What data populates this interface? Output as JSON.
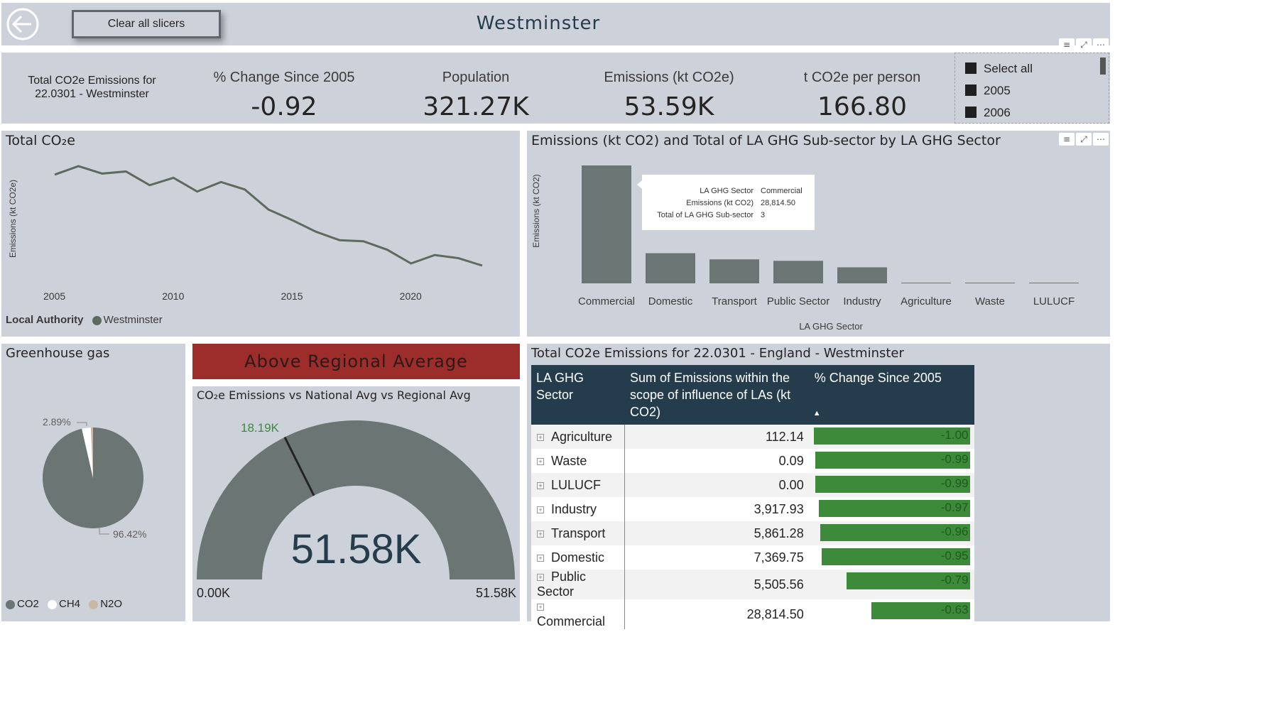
{
  "header": {
    "title": "Westminster",
    "clear_button": "Clear all slicers"
  },
  "kpis": {
    "caption": "Total CO2e Emissions for 22.0301 - Westminster",
    "items": [
      {
        "label": "% Change Since 2005",
        "value": "-0.92"
      },
      {
        "label": "Population",
        "value": "321.27K"
      },
      {
        "label": "Emissions (kt CO2e)",
        "value": "53.59K"
      },
      {
        "label": "t CO2e per person",
        "value": "166.80"
      }
    ]
  },
  "year_slicer": {
    "options": [
      "Select all",
      "2005",
      "2006"
    ]
  },
  "line_panel": {
    "title": "Total CO₂e",
    "legend_title": "Local Authority",
    "legend_item": "Westminster"
  },
  "bar_panel": {
    "title": "Emissions (kt CO2) and Total of LA GHG Sub-sector by LA GHG Sector",
    "tooltip": {
      "rows": [
        {
          "label": "LA GHG Sector",
          "value": "Commercial"
        },
        {
          "label": "Emissions (kt CO2)",
          "value": "28,814.50"
        },
        {
          "label": "Total of LA GHG Sub-sector",
          "value": "3"
        }
      ]
    }
  },
  "pie_panel": {
    "title": "Greenhouse gas",
    "label_ch4": "2.89%",
    "label_co2": "96.42%",
    "legend": [
      "CO2",
      "CH4",
      "N2O"
    ]
  },
  "banner": {
    "text": "Above Regional Average",
    "color": "#9c2d2a"
  },
  "gauge_panel": {
    "title": "CO₂e Emissions vs National Avg vs Regional Avg",
    "value_label": "51.58K",
    "target_label": "18.19K",
    "min_label": "0.00K",
    "max_label": "51.58K",
    "value": 51580,
    "min": 0,
    "max": 51580,
    "target": 18190
  },
  "table_panel": {
    "title": "Total CO2e Emissions for 22.0301 - England - Westminster",
    "columns": [
      "LA GHG Sector",
      "Sum of Emissions within the scope of influence of LAs (kt CO2)",
      "% Change Since 2005"
    ],
    "rows": [
      {
        "sector": "Agriculture",
        "emissions": "112.14",
        "change": "-1.00",
        "change_num": -1.0
      },
      {
        "sector": "Waste",
        "emissions": "0.09",
        "change": "-0.99",
        "change_num": -0.99
      },
      {
        "sector": "LULUCF",
        "emissions": "0.00",
        "change": "-0.99",
        "change_num": -0.99
      },
      {
        "sector": "Industry",
        "emissions": "3,917.93",
        "change": "-0.97",
        "change_num": -0.97
      },
      {
        "sector": "Transport",
        "emissions": "5,861.28",
        "change": "-0.96",
        "change_num": -0.96
      },
      {
        "sector": "Domestic",
        "emissions": "7,369.75",
        "change": "-0.95",
        "change_num": -0.95
      },
      {
        "sector": "Public Sector",
        "emissions": "5,505.56",
        "change": "-0.79",
        "change_num": -0.79
      },
      {
        "sector": "Commercial",
        "emissions": "28,814.50",
        "change": "-0.63",
        "change_num": -0.63
      }
    ]
  },
  "chart_data": [
    {
      "type": "line",
      "title": "Total CO₂e",
      "xlabel": "",
      "ylabel": "Emissions (kt CO2e)",
      "x_ticks": [
        "2005",
        "2010",
        "2015",
        "2020"
      ],
      "series": [
        {
          "name": "Westminster",
          "x": [
            2005,
            2006,
            2007,
            2008,
            2009,
            2010,
            2011,
            2012,
            2013,
            2014,
            2015,
            2016,
            2017,
            2018,
            2019,
            2020,
            2021,
            2022,
            2023
          ],
          "values": [
            100,
            108,
            101,
            103,
            90,
            97,
            84,
            93,
            86,
            67,
            57,
            46,
            38,
            37,
            29,
            16,
            24,
            21,
            14
          ]
        }
      ],
      "color": "#5d6b5d",
      "grid": false
    },
    {
      "type": "bar",
      "title": "Emissions (kt CO2) and Total of LA GHG Sub-sector by LA GHG Sector",
      "xlabel": "LA GHG Sector",
      "ylabel": "Emissions (kt CO2)",
      "categories": [
        "Commercial",
        "Domestic",
        "Transport",
        "Public Sector",
        "Industry",
        "Agriculture",
        "Waste",
        "LULUCF"
      ],
      "values": [
        28814.5,
        7369.75,
        5861.28,
        5505.56,
        3917.93,
        112.14,
        0.09,
        0.0
      ],
      "ylim": [
        0,
        28814.5
      ],
      "color": "#6b7574",
      "grid": false
    },
    {
      "type": "pie",
      "title": "Greenhouse gas",
      "categories": [
        "CO2",
        "CH4",
        "N2O"
      ],
      "values": [
        96.42,
        2.89,
        0.69
      ],
      "colors": [
        "#6b7574",
        "#ffffff",
        "#c9b8a4"
      ]
    }
  ]
}
